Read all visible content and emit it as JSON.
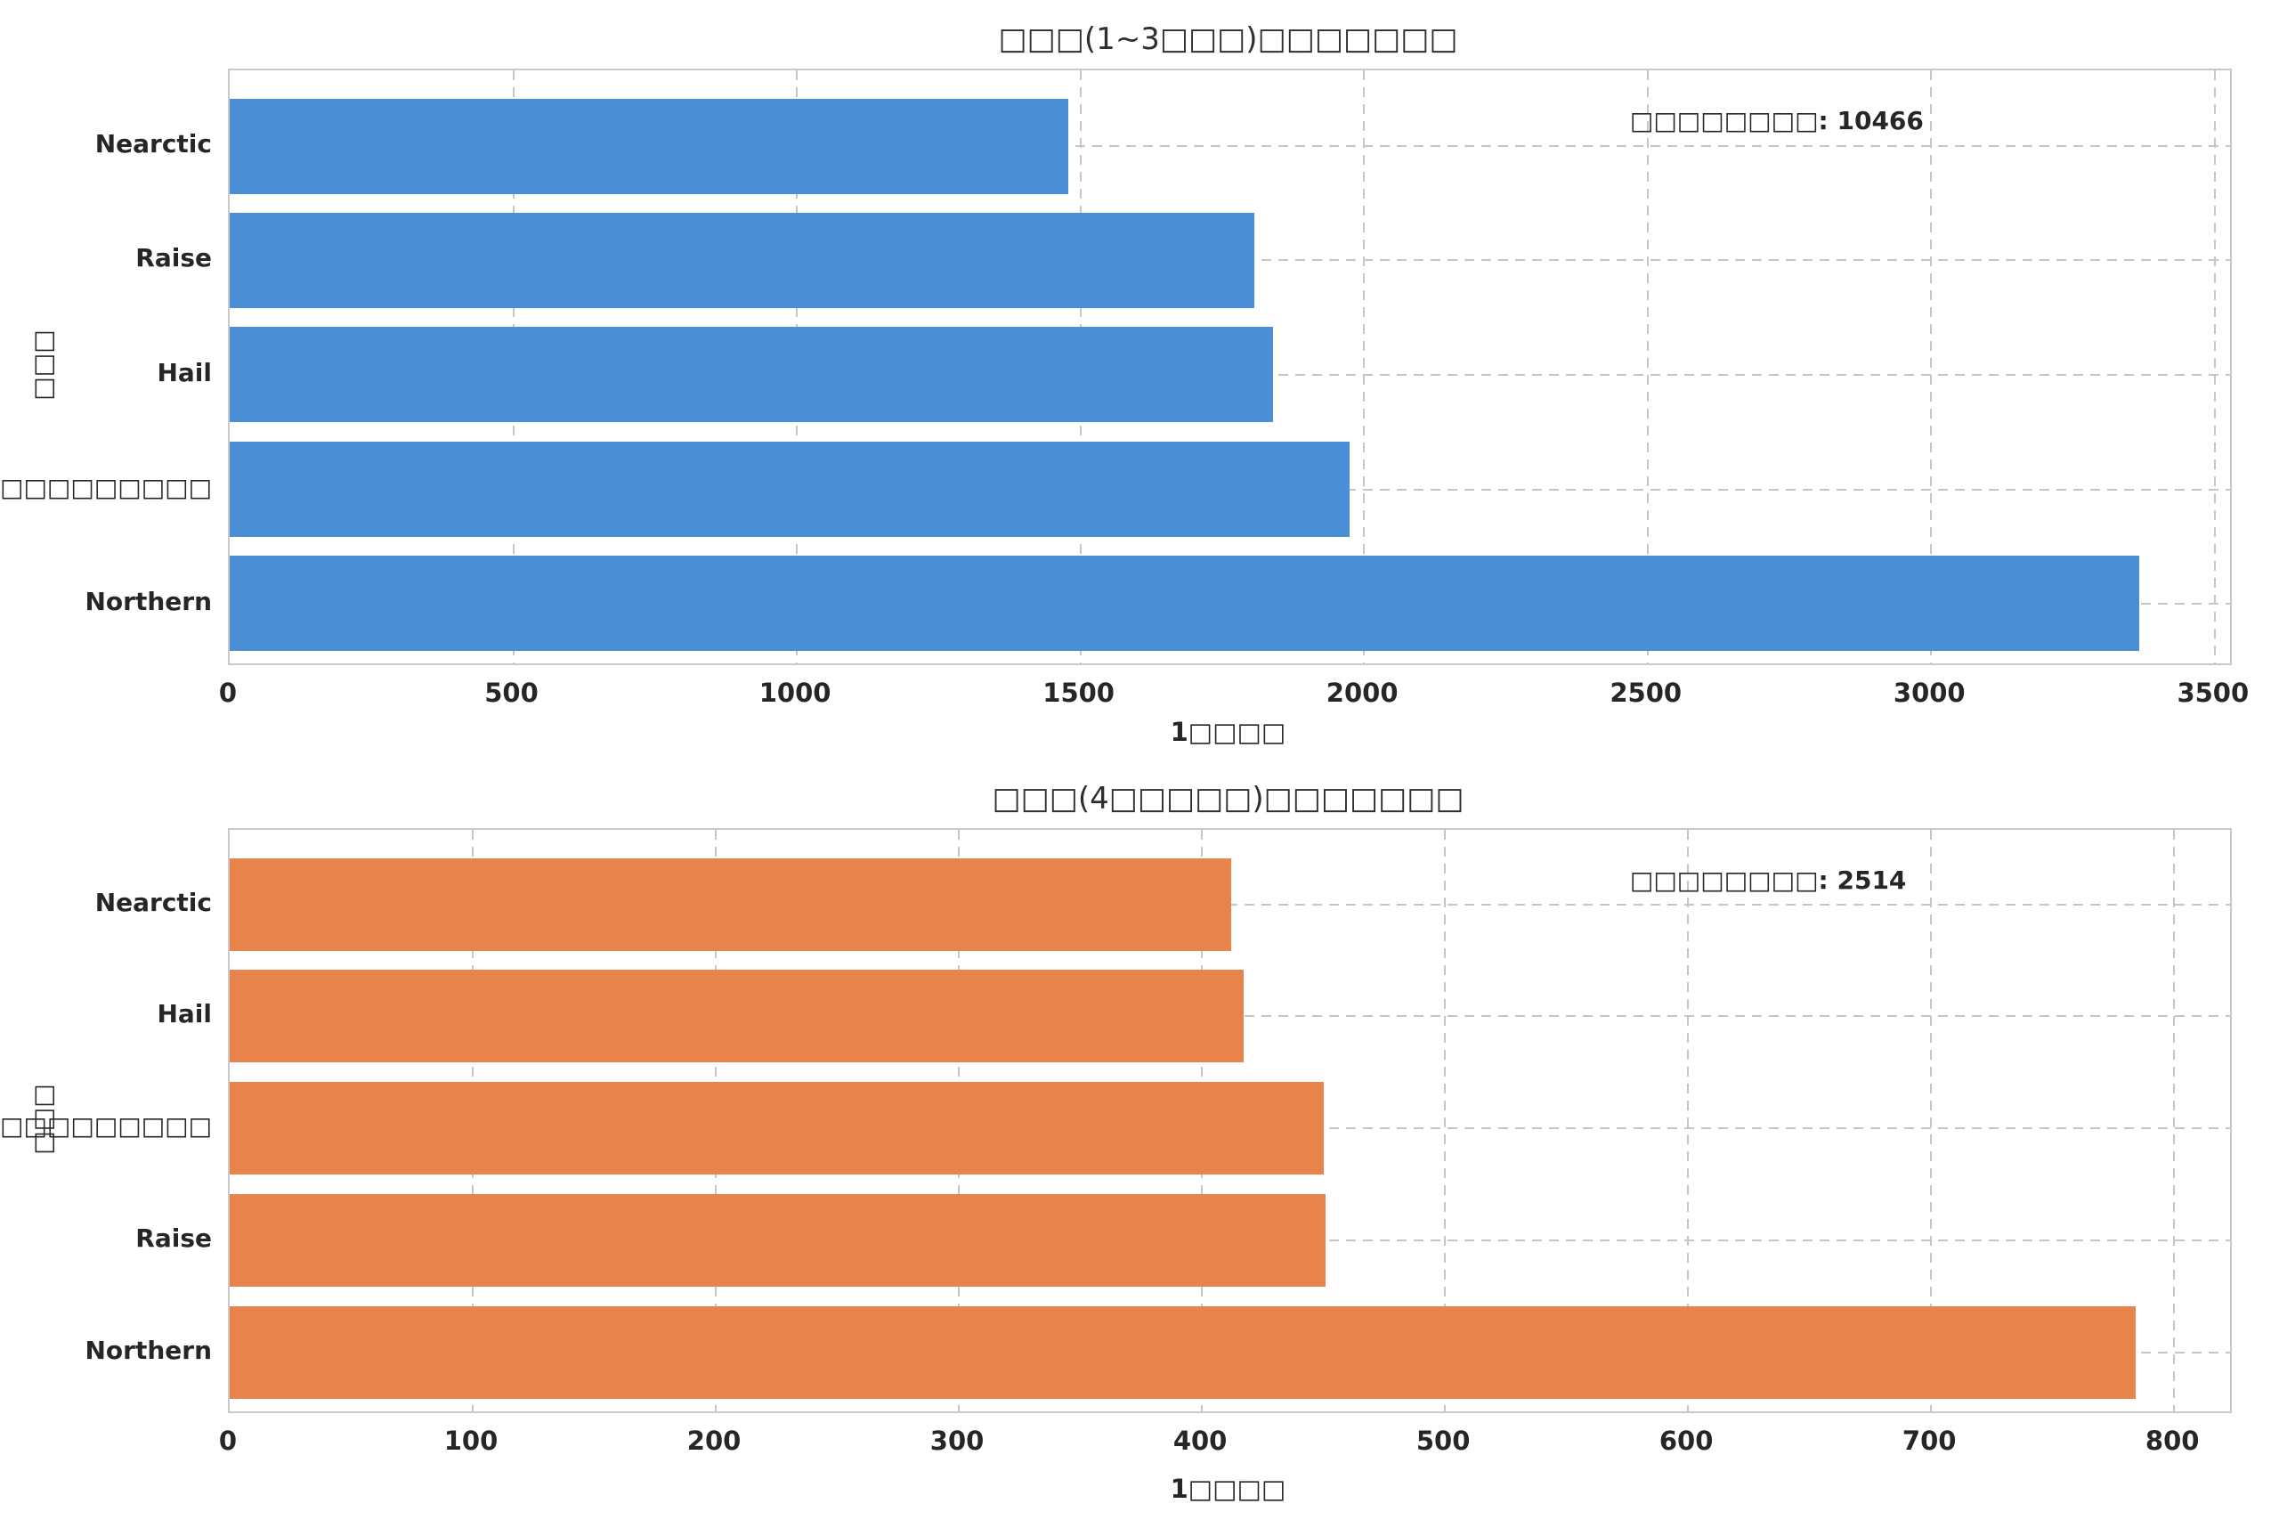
{
  "figure": {
    "background": "#ffffff",
    "grid_color": "#c6c6c6",
    "spine_color": "#c9c9c9",
    "text_color": "#262626"
  },
  "chart_data": [
    {
      "type": "bar",
      "orientation": "horizontal",
      "title": "□□□(1~3□□□)□□□□□□□",
      "xlabel": "1□□□□",
      "ylabel": "□□□",
      "annotation": "□□□□□□□□: 10466",
      "annotation_total": 10466,
      "categories": [
        "Nearctic",
        "Raise",
        "Hail",
        "□□□□□□□□□",
        "Northern"
      ],
      "values": [
        1478,
        1807,
        1840,
        1974,
        3367
      ],
      "xlim": [
        0,
        3527
      ],
      "xticks": [
        0,
        500,
        1000,
        1500,
        2000,
        2500,
        3000,
        3500
      ],
      "bar_color": "#4a8ed5",
      "grid": "dashed, both axes",
      "legend": "none"
    },
    {
      "type": "bar",
      "orientation": "horizontal",
      "title": "□□□(4□□□□□)□□□□□□□",
      "xlabel": "1□□□□",
      "ylabel": "□□□",
      "annotation": "□□□□□□□□: 2514",
      "annotation_total": 2514,
      "categories": [
        "Nearctic",
        "Hail",
        "□□□□□□□□□",
        "Raise",
        "Northern"
      ],
      "values": [
        412,
        417,
        450,
        451,
        784
      ],
      "xlim": [
        0,
        823
      ],
      "xticks": [
        0,
        100,
        200,
        300,
        400,
        500,
        600,
        700,
        800
      ],
      "bar_color": "#e8834c",
      "grid": "dashed, both axes",
      "legend": "none"
    }
  ]
}
